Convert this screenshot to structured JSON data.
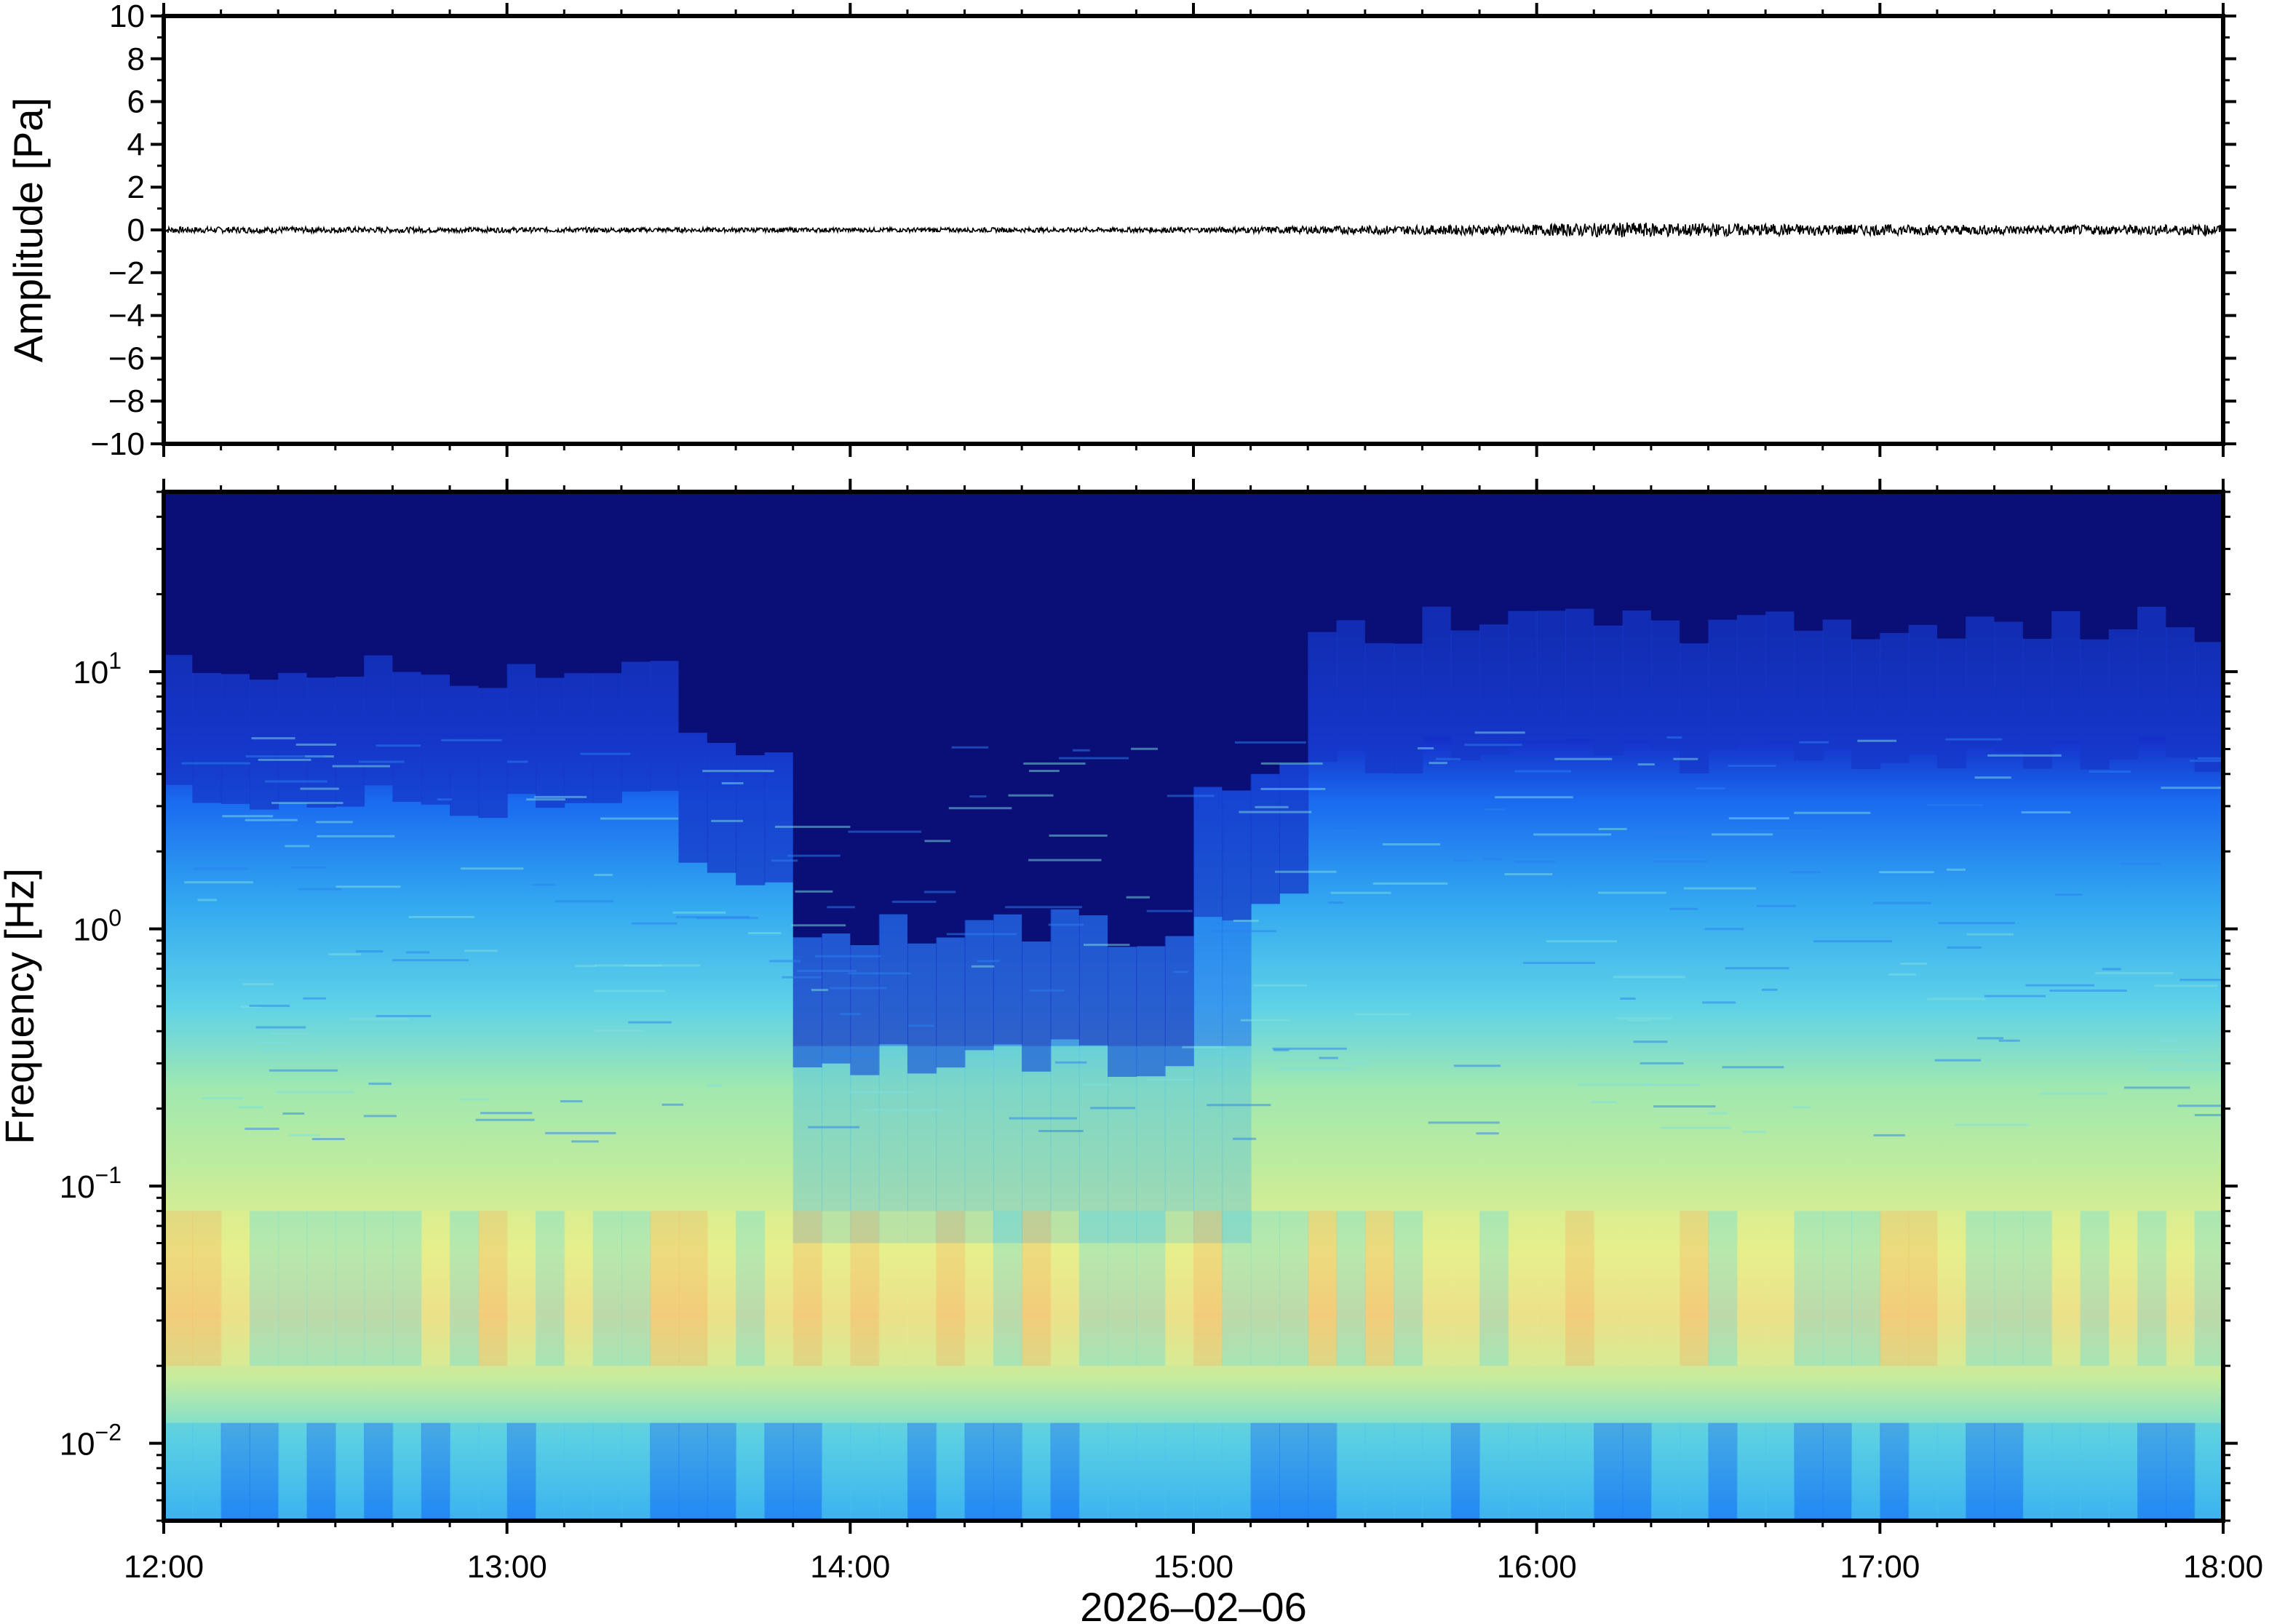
{
  "chart_data": [
    {
      "type": "line",
      "panel": "waveform",
      "ylabel": "Amplitude [Pa]",
      "ylim": [
        -10,
        10
      ],
      "yticks": [
        "10",
        "8",
        "6",
        "4",
        "2",
        "0",
        "−2",
        "−4",
        "−6",
        "−8",
        "−10"
      ],
      "ytick_values": [
        10,
        8,
        6,
        4,
        2,
        0,
        -2,
        -4,
        -6,
        -8,
        -10
      ],
      "xlim": [
        "12:00",
        "18:00"
      ],
      "series": [
        {
          "times": [
            "12:00",
            "13:00",
            "14:00",
            "15:00",
            "15:30",
            "16:00",
            "16:15",
            "16:30",
            "17:00",
            "17:30",
            "18:00"
          ],
          "envelope_pa": [
            0.15,
            0.12,
            0.1,
            0.12,
            0.2,
            0.25,
            0.35,
            0.3,
            0.25,
            0.22,
            0.25
          ]
        }
      ],
      "line_color": "#000000"
    },
    {
      "type": "heatmap",
      "panel": "spectrogram",
      "ylabel": "Frequency [Hz]",
      "yscale": "log",
      "ylim": [
        0.005,
        50
      ],
      "ytick_labels": [
        {
          "base": "10",
          "exp": "1",
          "value": 10
        },
        {
          "base": "10",
          "exp": "0",
          "value": 1
        },
        {
          "base": "10",
          "exp": "−1",
          "value": 0.1
        },
        {
          "base": "10",
          "exp": "−2",
          "value": 0.01
        }
      ],
      "xlabel": "2026–02–06",
      "xticks": [
        "12:00",
        "13:00",
        "14:00",
        "15:00",
        "16:00",
        "17:00",
        "18:00"
      ],
      "xlim": [
        "12:00",
        "18:00"
      ],
      "colormap": "jet-like (dark blue low to orange high)",
      "colors": {
        "low": "#0a0f78",
        "mid_low": "#1a5cf0",
        "mid": "#5fdce8",
        "mid_high": "#e6f08c",
        "high": "#f5b860"
      },
      "quiet_period": [
        "13:50",
        "15:10"
      ],
      "high_frequency_cutoff_hz": {
        "12:00-13:30": 10,
        "14:00-15:00": 1,
        "15:20-18:00": 15
      }
    }
  ]
}
